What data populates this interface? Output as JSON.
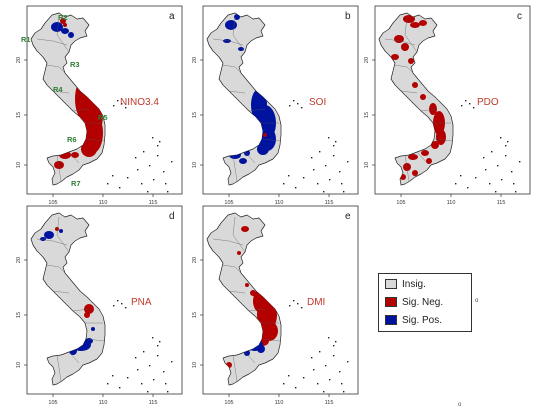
{
  "panels": [
    {
      "letter": "a",
      "index": "NINO3.4",
      "regions": [
        "R1",
        "R2",
        "R3",
        "R4",
        "R5",
        "R6",
        "R7"
      ]
    },
    {
      "letter": "b",
      "index": "SOI"
    },
    {
      "letter": "c",
      "index": "PDO"
    },
    {
      "letter": "d",
      "index": "PNA"
    },
    {
      "letter": "e",
      "index": "DMI"
    }
  ],
  "axes": {
    "x_ticks": [
      "105",
      "110",
      "115"
    ],
    "y_ticks": [
      "10",
      "15",
      "20"
    ]
  },
  "legend": {
    "items": [
      {
        "label": "Insig.",
        "color": "#d9d9d9"
      },
      {
        "label": "Sig. Neg.",
        "color": "#b30000"
      },
      {
        "label": "Sig. Pos.",
        "color": "#00139e"
      }
    ]
  },
  "stray_mark_right": "o",
  "stray_mark_bottom": "o",
  "colors": {
    "insignificant": "#d9d9d9",
    "sig_negative": "#b30000",
    "sig_positive": "#00139e",
    "index_label": "#c0392b",
    "region_label": "#2e7d32"
  }
}
